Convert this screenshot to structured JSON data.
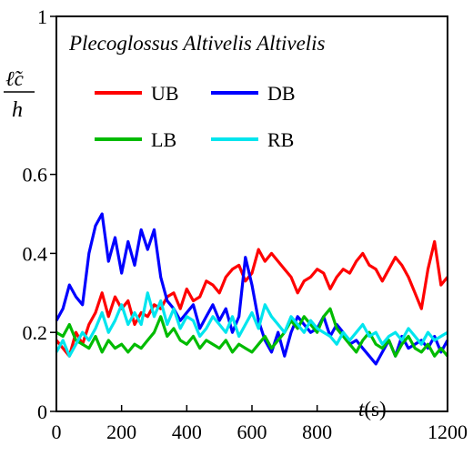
{
  "chart_data": {
    "type": "line",
    "title": "Plecoglossus Altivelis Altivelis",
    "ylabel": {
      "numerator": "ℓ̃c",
      "denominator": "h"
    },
    "xlabel": {
      "var": "t",
      "unit": "(s)"
    },
    "xlim": [
      0,
      1200
    ],
    "ylim": [
      0,
      1
    ],
    "xticks": [
      0,
      200,
      400,
      600,
      800,
      1200
    ],
    "xtick_labels": [
      "0",
      "200",
      "400",
      "600",
      "800",
      "1200"
    ],
    "yticks": [
      0,
      0.2,
      0.4,
      0.6,
      1
    ],
    "ytick_labels": [
      "0",
      "0.2",
      "0.4",
      "0.6",
      "1"
    ],
    "grid": false,
    "legend_placement": "top-left",
    "series": [
      {
        "name": "UB",
        "color": "#ff0000",
        "x": [
          0,
          20,
          40,
          60,
          80,
          100,
          120,
          140,
          160,
          180,
          200,
          220,
          240,
          260,
          280,
          300,
          320,
          340,
          360,
          380,
          400,
          420,
          440,
          460,
          480,
          500,
          520,
          540,
          560,
          580,
          600,
          620,
          640,
          660,
          680,
          700,
          720,
          740,
          760,
          780,
          800,
          820,
          840,
          860,
          880,
          900,
          920,
          940,
          960,
          980,
          1000,
          1020,
          1040,
          1060,
          1080,
          1100,
          1120,
          1140,
          1160,
          1180,
          1200
        ],
        "values": [
          0.18,
          0.16,
          0.14,
          0.2,
          0.17,
          0.22,
          0.25,
          0.3,
          0.24,
          0.29,
          0.26,
          0.28,
          0.22,
          0.25,
          0.24,
          0.27,
          0.26,
          0.29,
          0.3,
          0.26,
          0.31,
          0.28,
          0.29,
          0.33,
          0.32,
          0.3,
          0.34,
          0.36,
          0.37,
          0.33,
          0.35,
          0.41,
          0.38,
          0.4,
          0.38,
          0.36,
          0.34,
          0.3,
          0.33,
          0.34,
          0.36,
          0.35,
          0.31,
          0.34,
          0.36,
          0.35,
          0.38,
          0.4,
          0.37,
          0.36,
          0.33,
          0.36,
          0.39,
          0.37,
          0.34,
          0.3,
          0.26,
          0.36,
          0.43,
          0.32,
          0.34
        ]
      },
      {
        "name": "DB",
        "color": "#0000ff",
        "x": [
          0,
          20,
          40,
          60,
          80,
          100,
          120,
          140,
          160,
          180,
          200,
          220,
          240,
          260,
          280,
          300,
          320,
          340,
          360,
          380,
          400,
          420,
          440,
          460,
          480,
          500,
          520,
          540,
          560,
          580,
          600,
          620,
          640,
          660,
          680,
          700,
          720,
          740,
          760,
          780,
          800,
          820,
          840,
          860,
          880,
          900,
          920,
          940,
          960,
          980,
          1000,
          1020,
          1040,
          1060,
          1080,
          1100,
          1120,
          1140,
          1160,
          1180,
          1200
        ],
        "values": [
          0.23,
          0.26,
          0.32,
          0.29,
          0.27,
          0.4,
          0.47,
          0.5,
          0.38,
          0.44,
          0.35,
          0.43,
          0.37,
          0.46,
          0.41,
          0.46,
          0.34,
          0.28,
          0.26,
          0.23,
          0.25,
          0.27,
          0.21,
          0.24,
          0.27,
          0.23,
          0.26,
          0.2,
          0.24,
          0.39,
          0.32,
          0.23,
          0.18,
          0.15,
          0.2,
          0.14,
          0.2,
          0.24,
          0.22,
          0.2,
          0.21,
          0.24,
          0.19,
          0.22,
          0.2,
          0.17,
          0.18,
          0.16,
          0.14,
          0.12,
          0.15,
          0.18,
          0.14,
          0.19,
          0.16,
          0.17,
          0.18,
          0.16,
          0.19,
          0.15,
          0.18
        ]
      },
      {
        "name": "LB",
        "color": "#00bb00",
        "x": [
          0,
          20,
          40,
          60,
          80,
          100,
          120,
          140,
          160,
          180,
          200,
          220,
          240,
          260,
          280,
          300,
          320,
          340,
          360,
          380,
          400,
          420,
          440,
          460,
          480,
          500,
          520,
          540,
          560,
          580,
          600,
          620,
          640,
          660,
          680,
          700,
          720,
          740,
          760,
          780,
          800,
          820,
          840,
          860,
          880,
          900,
          920,
          940,
          960,
          980,
          1000,
          1020,
          1040,
          1060,
          1080,
          1100,
          1120,
          1140,
          1160,
          1180,
          1200
        ],
        "values": [
          0.2,
          0.19,
          0.22,
          0.18,
          0.17,
          0.16,
          0.19,
          0.15,
          0.18,
          0.16,
          0.17,
          0.15,
          0.17,
          0.16,
          0.18,
          0.2,
          0.24,
          0.19,
          0.21,
          0.18,
          0.17,
          0.19,
          0.16,
          0.18,
          0.17,
          0.16,
          0.18,
          0.15,
          0.17,
          0.16,
          0.15,
          0.17,
          0.19,
          0.16,
          0.18,
          0.2,
          0.23,
          0.21,
          0.24,
          0.22,
          0.2,
          0.24,
          0.26,
          0.21,
          0.19,
          0.17,
          0.15,
          0.18,
          0.2,
          0.17,
          0.16,
          0.18,
          0.14,
          0.17,
          0.19,
          0.16,
          0.15,
          0.17,
          0.14,
          0.16,
          0.14
        ]
      },
      {
        "name": "RB",
        "color": "#00e5ee",
        "x": [
          0,
          20,
          40,
          60,
          80,
          100,
          120,
          140,
          160,
          180,
          200,
          220,
          240,
          260,
          280,
          300,
          320,
          340,
          360,
          380,
          400,
          420,
          440,
          460,
          480,
          500,
          520,
          540,
          560,
          580,
          600,
          620,
          640,
          660,
          680,
          700,
          720,
          740,
          760,
          780,
          800,
          820,
          840,
          860,
          880,
          900,
          920,
          940,
          960,
          980,
          1000,
          1020,
          1040,
          1060,
          1080,
          1100,
          1120,
          1140,
          1160,
          1180,
          1200
        ],
        "values": [
          0.15,
          0.18,
          0.14,
          0.17,
          0.2,
          0.18,
          0.21,
          0.25,
          0.2,
          0.23,
          0.27,
          0.22,
          0.25,
          0.22,
          0.3,
          0.24,
          0.28,
          0.22,
          0.26,
          0.21,
          0.24,
          0.23,
          0.19,
          0.21,
          0.24,
          0.22,
          0.2,
          0.24,
          0.19,
          0.22,
          0.25,
          0.21,
          0.27,
          0.24,
          0.22,
          0.2,
          0.24,
          0.22,
          0.2,
          0.23,
          0.21,
          0.2,
          0.19,
          0.17,
          0.2,
          0.18,
          0.2,
          0.22,
          0.19,
          0.2,
          0.17,
          0.19,
          0.2,
          0.18,
          0.21,
          0.19,
          0.17,
          0.2,
          0.18,
          0.19,
          0.2
        ]
      }
    ]
  }
}
